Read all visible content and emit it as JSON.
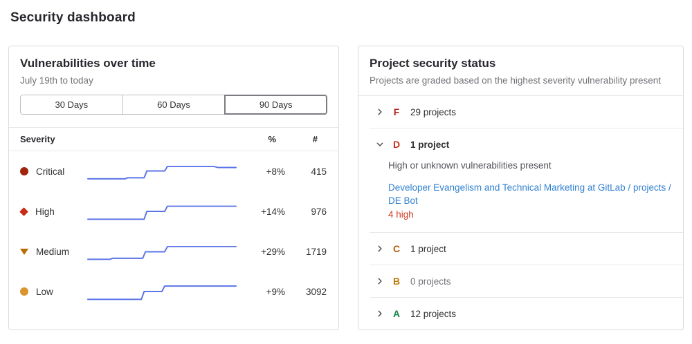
{
  "page": {
    "title": "Security dashboard"
  },
  "vuln_panel": {
    "title": "Vulnerabilities over time",
    "subtitle": "July 19th to today",
    "range_buttons": [
      {
        "label": "30 Days",
        "selected": false
      },
      {
        "label": "60 Days",
        "selected": false
      },
      {
        "label": "90 Days",
        "selected": true
      }
    ],
    "table_headers": {
      "severity": "Severity",
      "percent": "%",
      "count": "#"
    },
    "spark_color": "#5b74e8",
    "rows": [
      {
        "severity": "Critical",
        "icon": "critical",
        "icon_color": "#a1240f",
        "percent_change": "+8%",
        "count": "415",
        "spark": [
          [
            2,
            26
          ],
          [
            56,
            26
          ],
          [
            60,
            24.5
          ],
          [
            84,
            24.5
          ],
          [
            88,
            14.5
          ],
          [
            114,
            14.5
          ],
          [
            118,
            8
          ],
          [
            186,
            8
          ],
          [
            192,
            9.5
          ],
          [
            218,
            9.5
          ]
        ]
      },
      {
        "severity": "High",
        "icon": "high",
        "icon_color": "#c62c16",
        "percent_change": "+14%",
        "count": "976",
        "spark": [
          [
            2,
            26.5
          ],
          [
            84,
            26.5
          ],
          [
            88,
            15
          ],
          [
            114,
            15
          ],
          [
            118,
            7.5
          ],
          [
            218,
            7.5
          ]
        ]
      },
      {
        "severity": "Medium",
        "icon": "medium",
        "icon_color": "#b96d00",
        "percent_change": "+29%",
        "count": "1719",
        "spark": [
          [
            2,
            26.5
          ],
          [
            34,
            26.5
          ],
          [
            38,
            25
          ],
          [
            82,
            25
          ],
          [
            86,
            15.5
          ],
          [
            114,
            15.5
          ],
          [
            118,
            8
          ],
          [
            218,
            8
          ]
        ]
      },
      {
        "severity": "Low",
        "icon": "low",
        "icon_color": "#d99530",
        "percent_change": "+9%",
        "count": "3092",
        "spark": [
          [
            2,
            26.5
          ],
          [
            80,
            26.5
          ],
          [
            84,
            15
          ],
          [
            110,
            15
          ],
          [
            114,
            7
          ],
          [
            218,
            7
          ]
        ]
      }
    ]
  },
  "status_panel": {
    "title": "Project security status",
    "subtitle": "Projects are graded based on the highest severity vulnerability present",
    "rows": [
      {
        "grade": "F",
        "grade_color": "#b2271d",
        "label": "29 projects",
        "expanded": false,
        "muted": false
      },
      {
        "grade": "D",
        "grade_color": "#c9301c",
        "label": "1 project",
        "expanded": true,
        "muted": false,
        "description": "High or unknown vulnerabilities present",
        "project_link": "Developer Evangelism and Technical Marketing at GitLab / projects / DE Bot",
        "finding": "4 high",
        "finding_color": "#d13a26"
      },
      {
        "grade": "C",
        "grade_color": "#b45c09",
        "label": "1 project",
        "expanded": false,
        "muted": false
      },
      {
        "grade": "B",
        "grade_color": "#bf7b0c",
        "label": "0 projects",
        "expanded": false,
        "muted": true
      },
      {
        "grade": "A",
        "grade_color": "#1a8746",
        "label": "12 projects",
        "expanded": false,
        "muted": false
      }
    ]
  }
}
